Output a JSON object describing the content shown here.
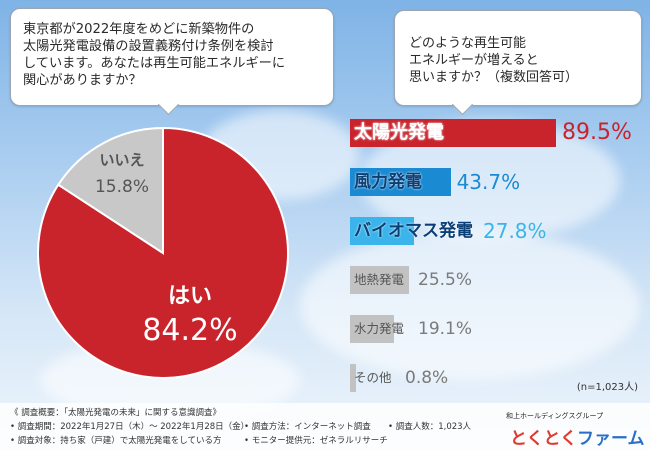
{
  "q1": {
    "lines": [
      "東京都が2022年度をめどに新築物件の",
      "太陽光発電設備の設置義務付け条例を検討",
      "しています。あなたは再生可能エネルギーに",
      "関心がありますか？"
    ]
  },
  "q2": {
    "lines": [
      "どのような再生可能",
      "エネルギーが増えると",
      "思いますか？（複数回答可）"
    ]
  },
  "n_note": "(n=1,023人)",
  "colors": {
    "red": "#c9232b",
    "blue": "#1a8ad2",
    "lightblue": "#3ab4ea",
    "gray": "#bdbdbd"
  },
  "chart_data": [
    {
      "type": "pie",
      "slices": [
        {
          "label": "はい",
          "value": 84.2,
          "value_text": "84.2%",
          "color": "#c9232b"
        },
        {
          "label": "いいえ",
          "value": 15.8,
          "value_text": "15.8%",
          "color": "#c8c8c8"
        }
      ]
    },
    {
      "type": "bar",
      "orientation": "horizontal",
      "categories": [
        "太陽光発電",
        "風力発電",
        "バイオマス発電",
        "地熱発電",
        "水力発電",
        "その他"
      ],
      "values": [
        89.5,
        43.7,
        27.8,
        25.5,
        19.1,
        0.8
      ],
      "value_text": [
        "89.5%",
        "43.7%",
        "27.8%",
        "25.5%",
        "19.1%",
        "0.8%"
      ],
      "colors": [
        "#c9232b",
        "#1a8ad2",
        "#3ab4ea",
        "#c2c2c2",
        "#c2c2c2",
        "#c2c2c2"
      ],
      "xlim": [
        0,
        100
      ]
    }
  ],
  "footer": {
    "summary": "《 調査概要：「太陽光発電の未来」に関する意識調査》",
    "period": "• 調査期間：2022年1月27日（木）～ 2022年1月28日（金）",
    "target": "• 調査対象：持ち家（戸建）で太陽光発電をしている方",
    "method": "• 調査方法：インターネット調査",
    "monitor": "• モニター提供元：ゼネラルリサーチ",
    "count": "• 調査人数：1,023人"
  },
  "brand": {
    "group": "和上ホールディングスグループ",
    "name_part1": "とくとく",
    "name_part2": "ファーム"
  }
}
